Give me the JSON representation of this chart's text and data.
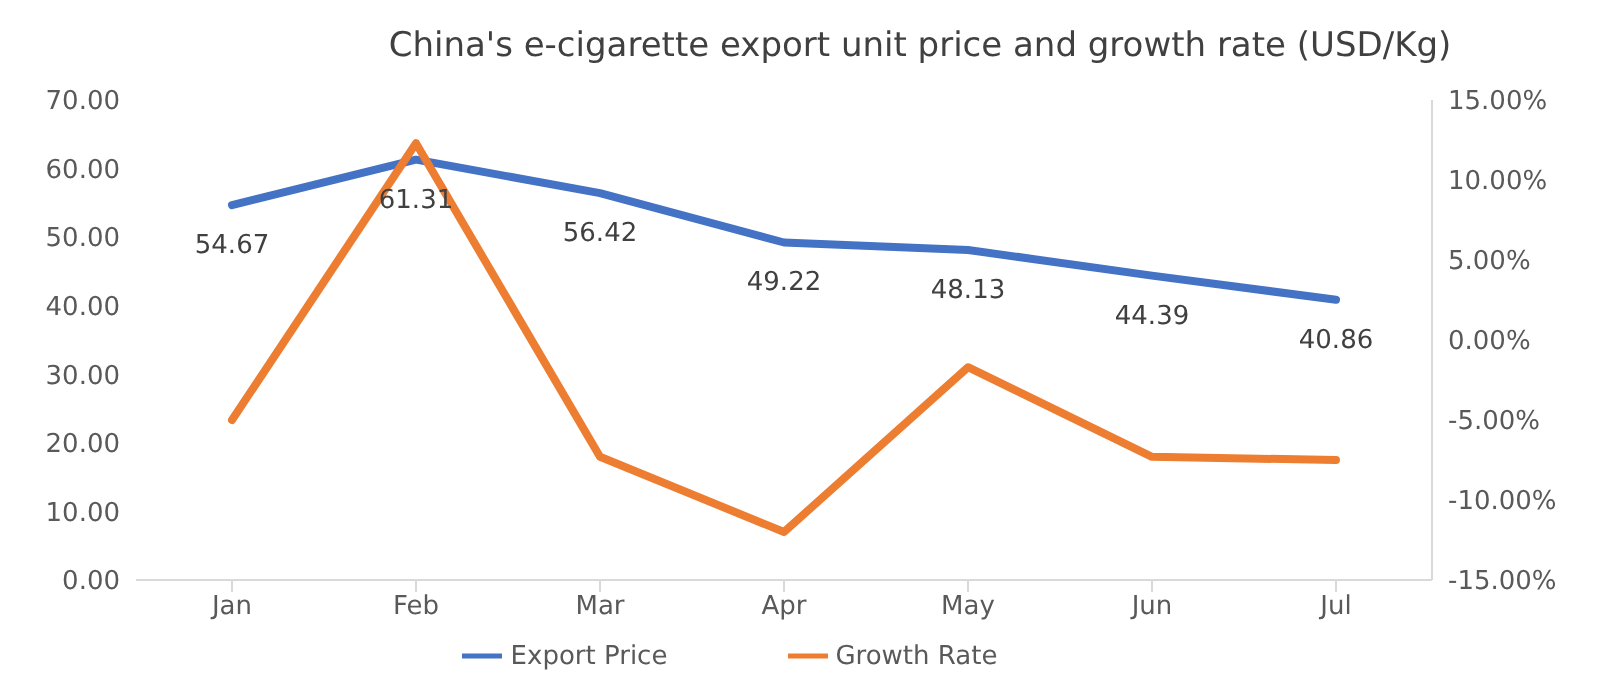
{
  "chart_data": {
    "type": "line",
    "title": "China's e-cigarette export unit price and growth rate (USD/Kg)",
    "categories": [
      "Jan",
      "Feb",
      "Mar",
      "Apr",
      "May",
      "Jun",
      "Jul"
    ],
    "series": [
      {
        "name": "Export Price",
        "color": "#4472c4",
        "values": [
          54.67,
          61.31,
          56.42,
          49.22,
          48.13,
          44.39,
          40.86
        ],
        "value_labels": [
          "54.67",
          "61.31",
          "56.42",
          "49.22",
          "48.13",
          "44.39",
          "40.86"
        ]
      },
      {
        "name": "Growth Rate",
        "color": "#ed7d31",
        "axis": "y2",
        "values": [
          -5.0,
          12.3,
          -7.3,
          -12.0,
          -1.7,
          -7.3,
          -7.5
        ]
      }
    ],
    "ylim": [
      0,
      70
    ],
    "yticks": [
      {
        "value": 0,
        "label": "0.00"
      },
      {
        "value": 10,
        "label": "10.00"
      },
      {
        "value": 20,
        "label": "20.00"
      },
      {
        "value": 30,
        "label": "30.00"
      },
      {
        "value": 40,
        "label": "40.00"
      },
      {
        "value": 50,
        "label": "50.00"
      },
      {
        "value": 60,
        "label": "60.00"
      },
      {
        "value": 70,
        "label": "70.00"
      }
    ],
    "y2lim": [
      -15,
      15
    ],
    "y2ticks": [
      {
        "value": -15,
        "label": "-15.00%"
      },
      {
        "value": -10,
        "label": "-10.00%"
      },
      {
        "value": -5,
        "label": "-5.00%"
      },
      {
        "value": 0,
        "label": "0.00%"
      },
      {
        "value": 5,
        "label": "5.00%"
      },
      {
        "value": 10,
        "label": "10.00%"
      },
      {
        "value": 15,
        "label": "15.00%"
      }
    ],
    "grid": false,
    "legend": "bottom",
    "marker": "none",
    "line_style": "solid"
  }
}
